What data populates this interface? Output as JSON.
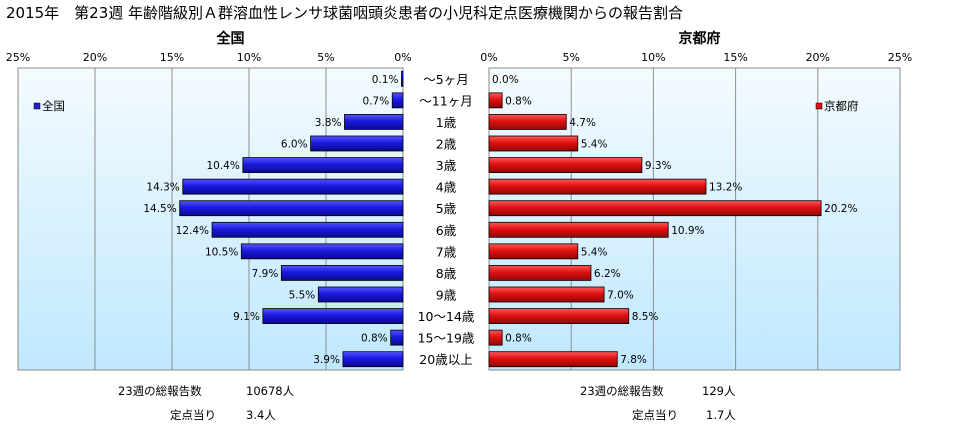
{
  "title": "2015年　第23週 年齢階級別Ａ群溶血性レンサ球菌咽頭炎患者の小児科定点医療機関からの報告割合",
  "colors": {
    "national": "#1f1fd6",
    "kyoto": "#dd1111",
    "plot_bg_top": "#f4fbfe",
    "plot_bg_bottom": "#bfe8ff"
  },
  "chart_data": [
    {
      "type": "bar",
      "orientation": "horizontal",
      "direction": "right-to-left",
      "title": "全国",
      "legend": "全国",
      "legend_position": "top-left",
      "xlim": [
        0,
        25
      ],
      "xticks": [
        "25%",
        "20%",
        "15%",
        "10%",
        "5%",
        "0%"
      ],
      "grid": true,
      "categories": [
        "～5ヶ月",
        "～11ヶ月",
        "1歳",
        "2歳",
        "3歳",
        "4歳",
        "5歳",
        "6歳",
        "7歳",
        "8歳",
        "9歳",
        "10～14歳",
        "15～19歳",
        "20歳以上"
      ],
      "values": [
        0.1,
        0.7,
        3.8,
        6.0,
        10.4,
        14.3,
        14.5,
        12.4,
        10.5,
        7.9,
        5.5,
        9.1,
        0.8,
        3.9
      ],
      "labels": [
        "0.1%",
        "0.7%",
        "3.8%",
        "6.0%",
        "10.4%",
        "14.3%",
        "14.5%",
        "12.4%",
        "10.5%",
        "7.9%",
        "5.5%",
        "9.1%",
        "0.8%",
        "3.9%"
      ]
    },
    {
      "type": "bar",
      "orientation": "horizontal",
      "direction": "left-to-right",
      "title": "京都府",
      "legend": "京都府",
      "legend_position": "top-right",
      "xlim": [
        0,
        25
      ],
      "xticks": [
        "0%",
        "5%",
        "10%",
        "15%",
        "20%",
        "25%"
      ],
      "grid": true,
      "categories": [
        "～5ヶ月",
        "～11ヶ月",
        "1歳",
        "2歳",
        "3歳",
        "4歳",
        "5歳",
        "6歳",
        "7歳",
        "8歳",
        "9歳",
        "10～14歳",
        "15～19歳",
        "20歳以上"
      ],
      "values": [
        0.0,
        0.8,
        4.7,
        5.4,
        9.3,
        13.2,
        20.2,
        10.9,
        5.4,
        6.2,
        7.0,
        8.5,
        0.8,
        7.8
      ],
      "labels": [
        "0.0%",
        "0.8%",
        "4.7%",
        "5.4%",
        "9.3%",
        "13.2%",
        "20.2%",
        "10.9%",
        "5.4%",
        "6.2%",
        "7.0%",
        "8.5%",
        "0.8%",
        "7.8%"
      ]
    }
  ],
  "stats": {
    "national": {
      "total_label": "23週の総報告数",
      "total_value": "10678人",
      "per_site_label": "定点当り",
      "per_site_value": "3.4人"
    },
    "kyoto": {
      "total_label": "23週の総報告数",
      "total_value": "129人",
      "per_site_label": "定点当り",
      "per_site_value": "1.7人"
    }
  }
}
